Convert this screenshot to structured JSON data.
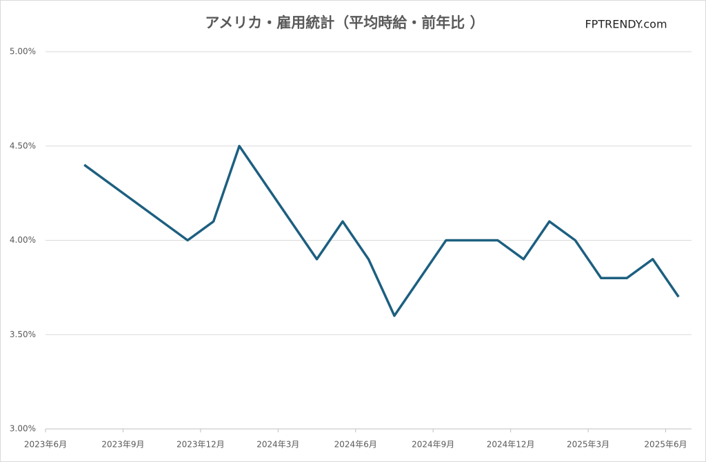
{
  "chart_data": {
    "type": "line",
    "title": "アメリカ・雇用統計（平均時給・前年比 ）",
    "source": "FPTRENDY.com",
    "x": [
      "2023-07",
      "2023-11",
      "2023-12",
      "2024-01",
      "2024-04",
      "2024-05",
      "2024-06",
      "2024-07",
      "2024-09",
      "2024-11",
      "2024-12",
      "2025-01",
      "2025-02",
      "2025-03",
      "2025-04",
      "2025-05",
      "2025-06"
    ],
    "series": [
      {
        "name": "平均時給・前年比",
        "color": "#1d5f80",
        "values": [
          4.4,
          4.0,
          4.1,
          4.5,
          3.9,
          4.1,
          3.9,
          3.6,
          4.0,
          4.0,
          3.9,
          4.1,
          4.0,
          3.8,
          3.8,
          3.9,
          3.7
        ]
      }
    ],
    "xlim": [
      "2023-06",
      "2025-07"
    ],
    "xticks": [
      {
        "value": "2023-06",
        "label": "2023年6月"
      },
      {
        "value": "2023-09",
        "label": "2023年9月"
      },
      {
        "value": "2023-12",
        "label": "2023年12月"
      },
      {
        "value": "2024-03",
        "label": "2024年3月"
      },
      {
        "value": "2024-06",
        "label": "2024年6月"
      },
      {
        "value": "2024-09",
        "label": "2024年9月"
      },
      {
        "value": "2024-12",
        "label": "2024年12月"
      },
      {
        "value": "2025-03",
        "label": "2025年3月"
      },
      {
        "value": "2025-06",
        "label": "2025年6月"
      }
    ],
    "ylim": [
      3,
      5
    ],
    "yticks": [
      {
        "value": 3,
        "label": "3.00%"
      },
      {
        "value": 3.5,
        "label": "3.50%"
      },
      {
        "value": 4,
        "label": "4.00%"
      },
      {
        "value": 4.5,
        "label": "4.50%"
      },
      {
        "value": 5,
        "label": "5.00%"
      }
    ],
    "grid": true
  }
}
